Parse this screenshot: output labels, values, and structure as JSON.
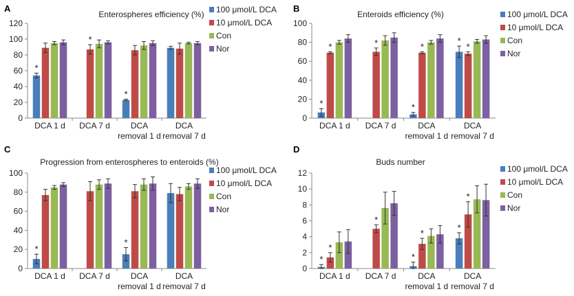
{
  "figure": {
    "legend": [
      {
        "label": "100 μmol/L DCA",
        "color": "#4a7ebb"
      },
      {
        "label": "10 μmol/L DCA",
        "color": "#be4b48"
      },
      {
        "label": "Con",
        "color": "#98b954"
      },
      {
        "label": "Nor",
        "color": "#7d60a0"
      }
    ]
  },
  "chart_data": [
    {
      "id": "A",
      "letter": "A",
      "type": "bar",
      "title": "Enterospheres efficiency (%)",
      "categories": [
        [
          "DCA 1 d"
        ],
        [
          "DCA 7 d"
        ],
        [
          "DCA",
          "removal 1 d"
        ],
        [
          "DCA",
          "removal 7 d"
        ]
      ],
      "ylim": [
        0,
        120
      ],
      "yticks": [
        0,
        20,
        40,
        60,
        80,
        100,
        120
      ],
      "series": [
        {
          "name": "100 μmol/L DCA",
          "values": [
            54,
            null,
            23,
            89
          ],
          "errors": [
            3,
            null,
            1,
            2
          ],
          "stars": [
            true,
            false,
            true,
            false
          ]
        },
        {
          "name": "10 μmol/L DCA",
          "values": [
            89,
            87,
            86,
            88
          ],
          "errors": [
            6,
            6,
            6,
            7
          ],
          "stars": [
            false,
            true,
            false,
            false
          ]
        },
        {
          "name": "Con",
          "values": [
            95,
            94,
            92,
            95
          ],
          "errors": [
            2,
            5,
            5,
            1
          ],
          "stars": [
            false,
            false,
            false,
            false
          ]
        },
        {
          "name": "Nor",
          "values": [
            96,
            96,
            95,
            95
          ],
          "errors": [
            3,
            2,
            3,
            2
          ],
          "stars": [
            false,
            false,
            false,
            false
          ]
        }
      ]
    },
    {
      "id": "B",
      "letter": "B",
      "type": "bar",
      "title": "Enteroids efficiency (%)",
      "categories": [
        [
          "DCA 1 d"
        ],
        [
          "DCA 7 d"
        ],
        [
          "DCA",
          "removal 1 d"
        ],
        [
          "DCA",
          "removal 7 d"
        ]
      ],
      "ylim": [
        0,
        100
      ],
      "yticks": [
        0,
        20,
        40,
        60,
        80,
        100
      ],
      "series": [
        {
          "name": "100 μmol/L DCA",
          "values": [
            6,
            null,
            4,
            70
          ],
          "errors": [
            4,
            null,
            2,
            6
          ],
          "stars": [
            true,
            false,
            true,
            true
          ]
        },
        {
          "name": "10 μmol/L DCA",
          "values": [
            69,
            70,
            69,
            68
          ],
          "errors": [
            1,
            4,
            1,
            2
          ],
          "stars": [
            true,
            true,
            true,
            true
          ]
        },
        {
          "name": "Con",
          "values": [
            80,
            82,
            80,
            81
          ],
          "errors": [
            2,
            5,
            2,
            2
          ],
          "stars": [
            false,
            false,
            false,
            false
          ]
        },
        {
          "name": "Nor",
          "values": [
            84,
            85,
            84,
            83
          ],
          "errors": [
            4,
            5,
            4,
            4
          ],
          "stars": [
            false,
            false,
            false,
            false
          ]
        }
      ]
    },
    {
      "id": "C",
      "letter": "C",
      "type": "bar",
      "title": "Progression from enterospheres to enteroids (%)",
      "categories": [
        [
          "DCA 1 d"
        ],
        [
          "DCA 7 d"
        ],
        [
          "DCA",
          "removal 1 d"
        ],
        [
          "DCA",
          "removal 7 d"
        ]
      ],
      "ylim": [
        0,
        100
      ],
      "yticks": [
        0,
        20,
        40,
        60,
        80,
        100
      ],
      "series": [
        {
          "name": "100 μmol/L DCA",
          "values": [
            10,
            null,
            15,
            79
          ],
          "errors": [
            5,
            null,
            7,
            10
          ],
          "stars": [
            true,
            false,
            true,
            false
          ]
        },
        {
          "name": "10 μmol/L DCA",
          "values": [
            77,
            81,
            81,
            78
          ],
          "errors": [
            6,
            10,
            7,
            7
          ],
          "stars": [
            false,
            false,
            false,
            false
          ]
        },
        {
          "name": "Con",
          "values": [
            85,
            88,
            88,
            86
          ],
          "errors": [
            2,
            5,
            6,
            3
          ],
          "stars": [
            false,
            false,
            false,
            false
          ]
        },
        {
          "name": "Nor",
          "values": [
            88,
            89,
            89,
            89
          ],
          "errors": [
            2,
            5,
            7,
            5
          ],
          "stars": [
            false,
            false,
            false,
            false
          ]
        }
      ]
    },
    {
      "id": "D",
      "letter": "D",
      "type": "bar",
      "title": "Buds number",
      "categories": [
        [
          "DCA 1 d"
        ],
        [
          "DCA 7 d"
        ],
        [
          "DCA",
          "removal 1 d"
        ],
        [
          "DCA",
          "removal 7 d"
        ]
      ],
      "ylim": [
        0,
        12
      ],
      "yticks": [
        0,
        2,
        4,
        6,
        8,
        10,
        12
      ],
      "series": [
        {
          "name": "100 μmol/L DCA",
          "values": [
            0.2,
            null,
            0.3,
            3.8
          ],
          "errors": [
            0.3,
            null,
            0.5,
            0.7
          ],
          "stars": [
            true,
            false,
            true,
            true
          ]
        },
        {
          "name": "10 μmol/L DCA",
          "values": [
            1.4,
            5.0,
            3.1,
            6.8
          ],
          "errors": [
            0.6,
            0.5,
            0.7,
            1.6
          ],
          "stars": [
            true,
            true,
            true,
            true
          ]
        },
        {
          "name": "Con",
          "values": [
            3.3,
            7.6,
            4.1,
            8.7
          ],
          "errors": [
            1.3,
            2.0,
            0.9,
            1.7
          ],
          "stars": [
            false,
            false,
            false,
            false
          ]
        },
        {
          "name": "Nor",
          "values": [
            3.4,
            8.2,
            4.3,
            8.6
          ],
          "errors": [
            1.5,
            1.5,
            1.1,
            2.0
          ],
          "stars": [
            false,
            false,
            false,
            false
          ]
        }
      ]
    }
  ]
}
